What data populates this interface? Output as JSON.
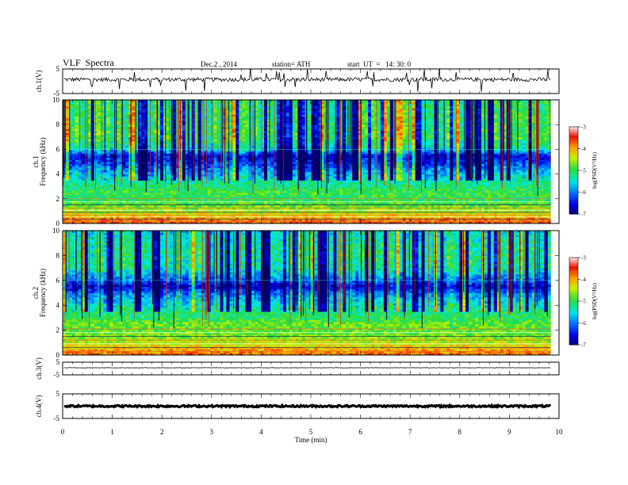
{
  "header": {
    "title": "VLF  Spectra",
    "date": "Dec.2 , 2014",
    "station": "station= ATH",
    "start": "start  UT  =   14: 30: 0"
  },
  "chart_data": [
    {
      "type": "line",
      "panel": "ch1-waveform",
      "ylabel": "ch.1(V)",
      "ylim": [
        -5,
        5
      ],
      "yticks": [
        "5",
        "-5"
      ],
      "x_range": [
        0,
        9.83
      ],
      "baseline": 0.7,
      "spread": 0.8,
      "color": "#000000"
    },
    {
      "type": "heatmap",
      "panel": "ch1-spectrogram",
      "ylabel": "ch.1\nFrequency  (kHz)",
      "ylim": [
        0,
        10
      ],
      "yticks": [
        "0",
        "2",
        "4",
        "6",
        "8",
        "10"
      ],
      "x_range": [
        0,
        9.83
      ],
      "colorbar": {
        "label": "log(PSD(V²/Hz)",
        "range": [
          -7,
          -3
        ],
        "ticks": [
          "-3",
          "-4",
          "-5",
          "-6",
          "-7"
        ]
      },
      "frequency_profile_kHz_log_psd": [
        [
          0.0,
          -3.6
        ],
        [
          0.4,
          -3.9
        ],
        [
          0.8,
          -4.3
        ],
        [
          1.2,
          -4.6
        ],
        [
          1.6,
          -4.8
        ],
        [
          2.0,
          -5.0
        ],
        [
          2.5,
          -4.9
        ],
        [
          3.0,
          -5.1
        ],
        [
          3.5,
          -5.3
        ],
        [
          4.0,
          -5.6
        ],
        [
          4.5,
          -5.9
        ],
        [
          5.0,
          -6.3
        ],
        [
          5.5,
          -6.6
        ],
        [
          6.0,
          -5.4
        ],
        [
          7.0,
          -4.9
        ],
        [
          8.0,
          -5.0
        ],
        [
          9.0,
          -5.0
        ],
        [
          10.0,
          -5.1
        ]
      ],
      "horizontal_lines_kHz": [
        0.2,
        0.35,
        0.55,
        0.7,
        0.9,
        1.05,
        1.25,
        1.5,
        1.75,
        2.0
      ]
    },
    {
      "type": "heatmap",
      "panel": "ch2-spectrogram",
      "ylabel": "ch.2\nFrequency  (kHz)",
      "ylim": [
        0,
        10
      ],
      "yticks": [
        "0",
        "2",
        "4",
        "6",
        "8",
        "10"
      ],
      "x_range": [
        0,
        9.83
      ],
      "colorbar": {
        "label": "log(PSD(V²/Hz)",
        "range": [
          -7,
          -3
        ],
        "ticks": [
          "-3",
          "-4",
          "-5",
          "-6",
          "-7"
        ]
      },
      "frequency_profile_kHz_log_psd": [
        [
          0.0,
          -3.7
        ],
        [
          0.5,
          -4.0
        ],
        [
          1.0,
          -4.4
        ],
        [
          1.5,
          -4.6
        ],
        [
          2.0,
          -4.8
        ],
        [
          2.5,
          -4.7
        ],
        [
          3.0,
          -5.0
        ],
        [
          3.5,
          -5.1
        ],
        [
          4.0,
          -5.3
        ],
        [
          4.5,
          -5.6
        ],
        [
          5.0,
          -5.9
        ],
        [
          5.5,
          -6.6
        ],
        [
          6.0,
          -6.0
        ],
        [
          7.0,
          -5.2
        ],
        [
          8.0,
          -5.1
        ],
        [
          9.0,
          -5.2
        ],
        [
          10.0,
          -5.4
        ]
      ],
      "horizontal_lines_kHz": [
        0.3,
        0.6,
        0.9,
        1.2,
        1.5,
        1.8,
        2.1
      ]
    },
    {
      "type": "line",
      "panel": "ch3-waveform",
      "ylabel": "ch.3(V)",
      "ylim": [
        -5,
        5
      ],
      "yticks": [
        "5",
        "-5"
      ],
      "x_range": [
        0,
        9.83
      ],
      "baseline": 0.6,
      "spread": 0.15,
      "color": "#000000"
    },
    {
      "type": "line",
      "panel": "ch4-waveform",
      "ylabel": "ch.4(V)",
      "ylim": [
        -5,
        5
      ],
      "yticks": [
        "5",
        "-5"
      ],
      "x_range": [
        0,
        9.83
      ],
      "baseline": 0.0,
      "spread": 0.35,
      "color": "#000000"
    }
  ],
  "xaxis": {
    "label": "Time  (min)",
    "range": [
      0,
      10
    ],
    "ticks": [
      "0",
      "1",
      "2",
      "3",
      "4",
      "5",
      "6",
      "7",
      "8",
      "9",
      "10"
    ]
  }
}
